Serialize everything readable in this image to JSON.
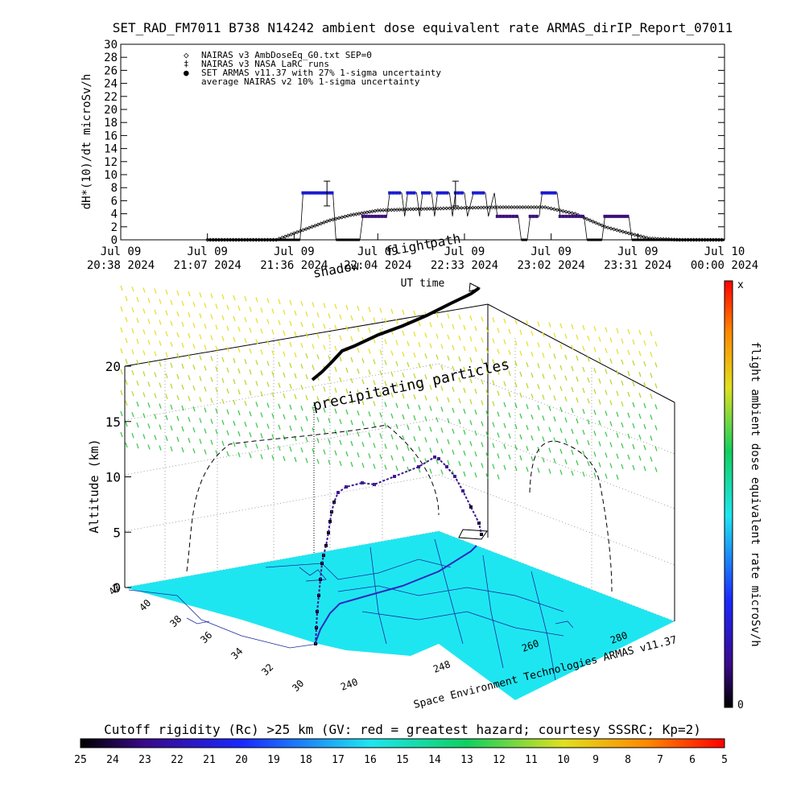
{
  "title": "SET_RAD_FM7011  B738 N14242 ambient dose equivalent rate ARMAS_dirIP_Report_07011",
  "colors": {
    "background": "#ffffff",
    "nairas_v3": "#000000",
    "set_armas": "#1a1ad0",
    "armas_low": "#3a0f7a",
    "map_fill": "#1ee6f0",
    "map_line": "#1a2aa0"
  },
  "top_chart": {
    "ylabel": "dH*(10)/dt microSv/h",
    "xlabel": "UT time",
    "legend": [
      {
        "symbol": "◇",
        "label": "NAIRAS v3 AmbDoseEq_G0.txt SEP=0",
        "color": "#000000"
      },
      {
        "symbol": "‡",
        "label": "NAIRAS v3 NASA LaRC runs",
        "color": "#000000"
      },
      {
        "symbol": "●",
        "label": "SET ARMAS v11.37 with 27% 1-sigma uncertainty",
        "color": "#1a1ad0"
      },
      {
        "symbol": "",
        "label": "average NAIRAS v2 10% 1-sigma uncertainty",
        "color": "#000000"
      }
    ],
    "overlap_text": [
      "shadow",
      "flight",
      "path"
    ]
  },
  "chart_data": [
    {
      "type": "line",
      "title": "SET_RAD_FM7011  B738 N14242 ambient dose equivalent rate ARMAS_dirIP_Report_07011",
      "xlabel": "UT time",
      "ylabel": "dH*(10)/dt microSv/h",
      "ylim": [
        0,
        30
      ],
      "yticks": [
        0,
        2,
        4,
        6,
        8,
        10,
        12,
        14,
        16,
        18,
        20,
        22,
        24,
        26,
        28,
        30
      ],
      "xlim": [
        "2024-07-09 20:38",
        "2024-07-10 00:00"
      ],
      "xticks": [
        {
          "line1": "Jul 09",
          "line2": "20:38 2024",
          "t": "2024-07-09 20:38"
        },
        {
          "line1": "Jul 09",
          "line2": "21:07 2024",
          "t": "2024-07-09 21:07"
        },
        {
          "line1": "Jul 09",
          "line2": "21:36 2024",
          "t": "2024-07-09 21:36"
        },
        {
          "line1": "Jul 09",
          "line2": "22:04 2024",
          "t": "2024-07-09 22:04"
        },
        {
          "line1": "Jul 09",
          "line2": "22:33 2024",
          "t": "2024-07-09 22:33"
        },
        {
          "line1": "Jul 09",
          "line2": "23:02 2024",
          "t": "2024-07-09 23:02"
        },
        {
          "line1": "Jul 09",
          "line2": "23:31 2024",
          "t": "2024-07-09 23:31"
        },
        {
          "line1": "Jul 10",
          "line2": "00:00 2024",
          "t": "2024-07-10 00:00"
        }
      ],
      "series": [
        {
          "name": "NAIRAS v3 AmbDoseEq_G0.txt SEP=0",
          "marker": "diamond",
          "points": [
            [
              "2024-07-09 21:07",
              0
            ],
            [
              "2024-07-09 21:30",
              0
            ],
            [
              "2024-07-09 21:36",
              1.0
            ],
            [
              "2024-07-09 21:42",
              2.0
            ],
            [
              "2024-07-09 21:48",
              3.0
            ],
            [
              "2024-07-09 21:55",
              3.8
            ],
            [
              "2024-07-09 22:04",
              4.5
            ],
            [
              "2024-07-09 22:15",
              4.7
            ],
            [
              "2024-07-09 22:25",
              4.8
            ],
            [
              "2024-07-09 22:33",
              4.9
            ],
            [
              "2024-07-09 22:45",
              5.0
            ],
            [
              "2024-07-09 23:00",
              5.0
            ],
            [
              "2024-07-09 23:05",
              4.5
            ],
            [
              "2024-07-09 23:10",
              4.0
            ],
            [
              "2024-07-09 23:15",
              3.0
            ],
            [
              "2024-07-09 23:20",
              2.0
            ],
            [
              "2024-07-09 23:28",
              1.0
            ],
            [
              "2024-07-09 23:35",
              0.2
            ],
            [
              "2024-07-09 23:45",
              0
            ],
            [
              "2024-07-10 00:00",
              0
            ]
          ]
        },
        {
          "name": "SET ARMAS v11.37 with 27% 1-sigma uncertainty",
          "marker": "dot",
          "points": [
            [
              "2024-07-09 21:07",
              0
            ],
            [
              "2024-07-09 21:38",
              0
            ],
            [
              "2024-07-09 21:39",
              7.2
            ],
            [
              "2024-07-09 21:49",
              7.2
            ],
            [
              "2024-07-09 21:50",
              0
            ],
            [
              "2024-07-09 21:58",
              0
            ],
            [
              "2024-07-09 21:59",
              3.6
            ],
            [
              "2024-07-09 22:07",
              3.6
            ],
            [
              "2024-07-09 22:08",
              7.2
            ],
            [
              "2024-07-09 22:12",
              7.2
            ],
            [
              "2024-07-09 22:13",
              3.6
            ],
            [
              "2024-07-09 22:14",
              7.2
            ],
            [
              "2024-07-09 22:17",
              7.2
            ],
            [
              "2024-07-09 22:18",
              3.6
            ],
            [
              "2024-07-09 22:19",
              7.2
            ],
            [
              "2024-07-09 22:22",
              7.2
            ],
            [
              "2024-07-09 22:23",
              3.6
            ],
            [
              "2024-07-09 22:24",
              7.2
            ],
            [
              "2024-07-09 22:28",
              7.2
            ],
            [
              "2024-07-09 22:29",
              3.6
            ],
            [
              "2024-07-09 22:30",
              7.2
            ],
            [
              "2024-07-09 22:33",
              7.2
            ],
            [
              "2024-07-09 22:34",
              3.6
            ],
            [
              "2024-07-09 22:36",
              7.2
            ],
            [
              "2024-07-09 22:40",
              7.2
            ],
            [
              "2024-07-09 22:41",
              3.6
            ],
            [
              "2024-07-09 22:43",
              7.2
            ],
            [
              "2024-07-09 22:44",
              3.6
            ],
            [
              "2024-07-09 22:51",
              3.6
            ],
            [
              "2024-07-09 22:52",
              0
            ],
            [
              "2024-07-09 22:54",
              0
            ],
            [
              "2024-07-09 22:55",
              3.6
            ],
            [
              "2024-07-09 22:58",
              3.6
            ],
            [
              "2024-07-09 22:59",
              7.2
            ],
            [
              "2024-07-09 23:04",
              7.2
            ],
            [
              "2024-07-09 23:05",
              3.6
            ],
            [
              "2024-07-09 23:13",
              3.6
            ],
            [
              "2024-07-09 23:14",
              0
            ],
            [
              "2024-07-09 23:19",
              0
            ],
            [
              "2024-07-09 23:20",
              3.6
            ],
            [
              "2024-07-09 23:28",
              3.6
            ],
            [
              "2024-07-09 23:29",
              0
            ],
            [
              "2024-07-10 00:00",
              0
            ]
          ]
        },
        {
          "name": "NAIRAS v3 NASA LaRC runs",
          "marker": "errorbar",
          "points": [
            {
              "t": "2024-07-09 21:47",
              "y": 7.0,
              "lo": 5.2,
              "hi": 9.0
            },
            {
              "t": "2024-07-09 22:30",
              "y": 7.0,
              "lo": 5.2,
              "hi": 9.0
            }
          ]
        }
      ]
    },
    {
      "type": "scatter",
      "title": "",
      "xlabel": "",
      "ylabel": "Altitude (km)",
      "zlim": [
        0,
        20
      ],
      "zticks": [
        0,
        5,
        10,
        15,
        20
      ],
      "latitude_ticks": [
        42,
        40,
        38,
        36,
        34,
        32,
        30
      ],
      "longitude_ticks": [
        240,
        248,
        260,
        280
      ],
      "annotations": [
        "precipitating particles",
        "shadow",
        "flight",
        "path"
      ],
      "credit": "Space Environment Technologies ARMAS v11.37"
    }
  ],
  "colorbar_right": {
    "label": "flight ambient dose equivalent rate microSv/h",
    "top": "x",
    "bottom": "0"
  },
  "colorbar_bottom": {
    "label": "Cutoff rigidity (Rc) >25 km (GV: red = greatest hazard; courtesy SSSRC; Kp=2)",
    "ticks": [
      "25",
      "24",
      "23",
      "22",
      "21",
      "20",
      "19",
      "18",
      "17",
      "16",
      "15",
      "14",
      "13",
      "12",
      "11",
      "10",
      "9",
      "8",
      "7",
      "6",
      "5"
    ]
  }
}
